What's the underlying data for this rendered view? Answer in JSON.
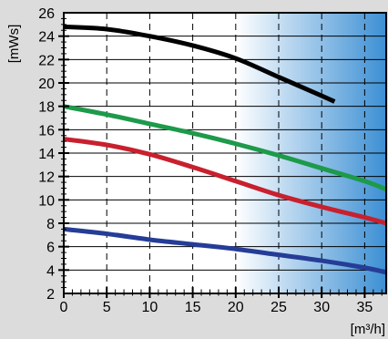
{
  "chart_data": {
    "type": "line",
    "ylabel": "[mWs]",
    "xlabel": "[m³/h]",
    "xlim": [
      0,
      37.5
    ],
    "ylim": [
      2,
      26
    ],
    "xticks": [
      0,
      5,
      10,
      15,
      20,
      25,
      30,
      35
    ],
    "yticks": [
      2,
      4,
      6,
      8,
      10,
      12,
      14,
      16,
      18,
      20,
      22,
      24,
      26
    ],
    "x_tick_labels": [
      "0",
      "5",
      "10",
      "15",
      "20",
      "25",
      "30",
      "35"
    ],
    "y_tick_labels": [
      "2",
      "4",
      "6",
      "8",
      "10",
      "12",
      "14",
      "16",
      "18",
      "20",
      "22",
      "24",
      "26"
    ],
    "vertical_gridlines": "dashed",
    "horizontal_gridlines": "solid",
    "shaded_region": {
      "x_from": 20,
      "x_to": 37.5,
      "color_from": "#ffffff",
      "color_to": "#3c8fd4"
    },
    "series": [
      {
        "color": "#000000",
        "x": [
          0,
          5,
          10,
          15,
          20,
          25,
          30,
          31.5
        ],
        "y": [
          24.8,
          24.6,
          24.0,
          23.2,
          22.1,
          20.5,
          18.9,
          18.4
        ]
      },
      {
        "color": "#1d9a4a",
        "x": [
          0,
          5,
          10,
          15,
          20,
          25,
          30,
          35,
          37.5
        ],
        "y": [
          18.0,
          17.3,
          16.5,
          15.7,
          14.8,
          13.8,
          12.7,
          11.6,
          10.9
        ]
      },
      {
        "color": "#c8202e",
        "x": [
          0,
          5,
          10,
          15,
          20,
          25,
          30,
          35,
          37.5
        ],
        "y": [
          15.2,
          14.7,
          13.9,
          12.8,
          11.6,
          10.4,
          9.4,
          8.5,
          8.0
        ]
      },
      {
        "color": "#253d97",
        "x": [
          0,
          5,
          10,
          15,
          20,
          25,
          30,
          35,
          37.5
        ],
        "y": [
          7.5,
          7.1,
          6.6,
          6.2,
          5.8,
          5.3,
          4.8,
          4.2,
          3.8
        ]
      }
    ]
  }
}
